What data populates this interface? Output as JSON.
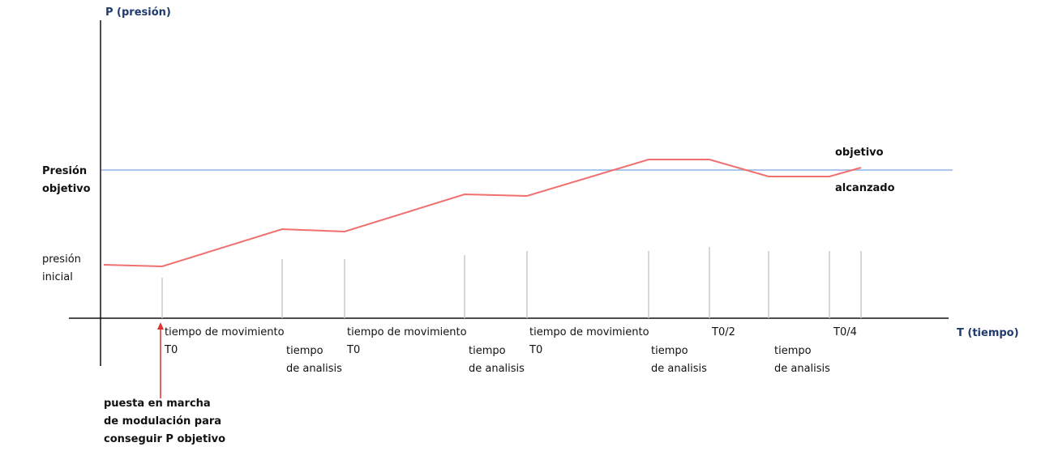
{
  "axes": {
    "y_label": "P (presión)",
    "x_label": "T (tiempo)"
  },
  "levels": {
    "target": [
      "Presión",
      "objetivo"
    ],
    "initial": [
      "presión",
      "inicial"
    ]
  },
  "reached": [
    "objetivo",
    "alcanzado"
  ],
  "phases": [
    [
      "tiempo de movimiento",
      "T0"
    ],
    [
      "tiempo",
      "de analisis"
    ],
    [
      "tiempo de movimiento",
      "T0"
    ],
    [
      "tiempo",
      "de analisis"
    ],
    [
      "tiempo de movimiento",
      "T0"
    ],
    [
      "tiempo",
      "de analisis"
    ],
    [
      "T0/2"
    ],
    [
      "tiempo",
      "de analisis"
    ],
    [
      "T0/4"
    ]
  ],
  "start_note": [
    "puesta en marcha",
    "de modulación para",
    "conseguir P objetivo"
  ]
}
